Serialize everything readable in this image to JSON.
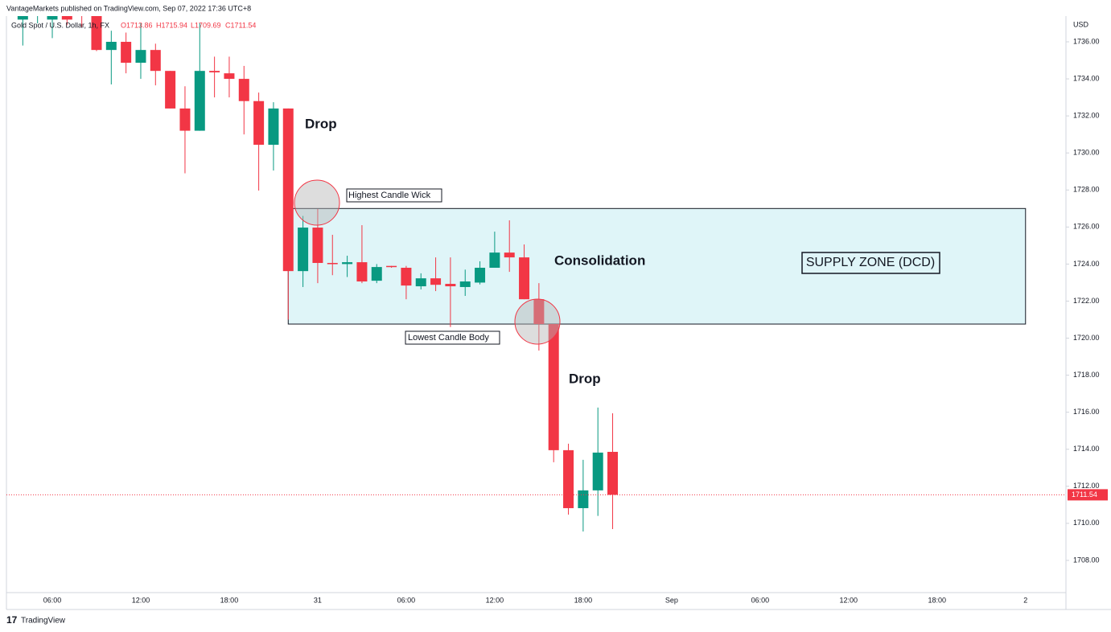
{
  "header": "VantageMarkets published on TradingView.com, Sep 07, 2022 17:36 UTC+8",
  "chart_data": {
    "type": "candlestick",
    "symbol": "Gold Spot / U.S. Dollar, 1h, FX",
    "legend_ohlc": [
      "O1713.86",
      "H1715.94",
      "L1709.69",
      "C1711.54"
    ],
    "currency": "USD",
    "categories": [
      null,
      null,
      null,
      "06:00",
      null,
      null,
      null,
      null,
      null,
      "12:00",
      null,
      null,
      null,
      null,
      null,
      "18:00",
      null,
      null,
      null,
      null,
      null,
      "31",
      null,
      null,
      null,
      null,
      null,
      "06:00",
      null,
      null,
      null,
      null,
      null,
      "12:00",
      null,
      null,
      null,
      null,
      null,
      "18:00",
      null,
      null,
      null,
      null,
      null,
      "Sep",
      null,
      null,
      null,
      null,
      null,
      "06:00",
      null,
      null,
      null,
      null,
      null,
      "12:00",
      null,
      null,
      null,
      null,
      null,
      "18:00",
      null,
      null,
      null,
      null,
      null,
      "2",
      null,
      null
    ],
    "open": [
      null,
      1737.2,
      1737.4,
      1737.2,
      1737.4,
      1737.8,
      1737.4,
      1735.56,
      1736.0,
      1734.87,
      1735.56,
      1734.43,
      1732.4,
      1731.2,
      1734.43,
      1734.3,
      1734.0,
      1732.8,
      1730.44,
      1732.4,
      1723.62,
      1725.97,
      1724.06,
      1724.0,
      1724.1,
      1723.1,
      1723.9,
      1723.8,
      1722.8,
      1723.23,
      1722.93,
      1722.76,
      1723.0,
      1723.8,
      1724.62,
      1724.36,
      1722.1,
      1720.76,
      1713.95,
      1710.82,
      1711.78,
      1713.86,
      null,
      null,
      null,
      null,
      null,
      null,
      null,
      null,
      null,
      null,
      null,
      null,
      null,
      null,
      null,
      null,
      null,
      null,
      null,
      null,
      null,
      null,
      null,
      null,
      null,
      null,
      null,
      null,
      null,
      null
    ],
    "high": [
      null,
      1737.8,
      1738.0,
      1738.0,
      1737.9,
      1738.2,
      1738.0,
      1736.6,
      1736.5,
      1737.0,
      1735.9,
      1734.43,
      1733.6,
      1737.0,
      1735.2,
      1735.2,
      1734.7,
      1733.26,
      1732.74,
      1732.4,
      1726.6,
      1726.97,
      1725.58,
      1724.45,
      1726.1,
      1724.0,
      1723.9,
      1723.9,
      1723.5,
      1724.36,
      1724.36,
      1723.7,
      1724.15,
      1725.75,
      1726.36,
      1725.06,
      1722.97,
      1720.76,
      1714.3,
      1713.43,
      1716.25,
      1715.94,
      null,
      null,
      null,
      null,
      null,
      null,
      null,
      null,
      null,
      null,
      null,
      null,
      null,
      null,
      null,
      null,
      null,
      null,
      null,
      null,
      null,
      null,
      null,
      null,
      null,
      null,
      null,
      null,
      null,
      null
    ],
    "low": [
      null,
      1735.8,
      1737.0,
      1736.2,
      1736.9,
      1736.8,
      1735.5,
      1733.7,
      1734.3,
      1734.0,
      1733.65,
      1732.4,
      1728.9,
      1731.2,
      1733.0,
      1733.0,
      1731.0,
      1727.97,
      1729.05,
      1721.0,
      1722.76,
      1722.97,
      1723.4,
      1723.3,
      1722.97,
      1722.97,
      1723.8,
      1722.1,
      1722.63,
      1722.54,
      1720.6,
      1722.28,
      1722.9,
      1723.8,
      1723.58,
      1722.1,
      1719.33,
      1713.3,
      1710.47,
      1709.56,
      1710.4,
      1709.69,
      null,
      null,
      null,
      null,
      null,
      null,
      null,
      null,
      null,
      null,
      null,
      null,
      null,
      null,
      null,
      null,
      null,
      null,
      null,
      null,
      null,
      null,
      null,
      null,
      null,
      null,
      null,
      null,
      null,
      null
    ],
    "close": [
      null,
      1737.6,
      1737.6,
      1737.6,
      1737.2,
      1737.4,
      1735.56,
      1736.0,
      1734.87,
      1735.56,
      1734.43,
      1732.4,
      1731.2,
      1734.43,
      1734.35,
      1734.0,
      1732.8,
      1730.44,
      1732.4,
      1723.62,
      1725.97,
      1724.06,
      1724.0,
      1724.1,
      1723.06,
      1723.84,
      1723.84,
      1722.84,
      1723.23,
      1722.88,
      1722.8,
      1723.06,
      1723.8,
      1724.62,
      1724.36,
      1722.1,
      1720.76,
      1713.95,
      1710.82,
      1711.78,
      1713.82,
      1711.54,
      null,
      null,
      null,
      null,
      null,
      null,
      null,
      null,
      null,
      null,
      null,
      null,
      null,
      null,
      null,
      null,
      null,
      null,
      null,
      null,
      null,
      null,
      null,
      null,
      null,
      null,
      null,
      null,
      null,
      null
    ],
    "up_color": "#089981",
    "down_color": "#f23645",
    "ylim": [
      1706.26,
      1737.39
    ],
    "yticks": [
      {
        "value": 1708,
        "label": "1708.00"
      },
      {
        "value": 1710,
        "label": "1710.00"
      },
      {
        "value": 1712,
        "label": "1712.00"
      },
      {
        "value": 1714,
        "label": "1714.00"
      },
      {
        "value": 1716,
        "label": "1716.00"
      },
      {
        "value": 1718,
        "label": "1718.00"
      },
      {
        "value": 1720,
        "label": "1720.00"
      },
      {
        "value": 1722,
        "label": "1722.00"
      },
      {
        "value": 1724,
        "label": "1724.00"
      },
      {
        "value": 1726,
        "label": "1726.00"
      },
      {
        "value": 1728,
        "label": "1728.00"
      },
      {
        "value": 1730,
        "label": "1730.00"
      },
      {
        "value": 1732,
        "label": "1732.00"
      },
      {
        "value": 1734,
        "label": "1734.00"
      },
      {
        "value": 1736,
        "label": "1736.00"
      }
    ],
    "last_price": {
      "value": 1711.54,
      "label": "1711.54"
    },
    "zone": {
      "label": "SUPPLY ZONE (DCD)",
      "top": 1727.0,
      "bottom": 1720.76,
      "color": "#dff5f8"
    },
    "annotations": [
      "Drop",
      "Highest Candle Wick",
      "Consolidation",
      "Lowest Candle Body",
      "Drop"
    ]
  },
  "footer": "TradingView"
}
